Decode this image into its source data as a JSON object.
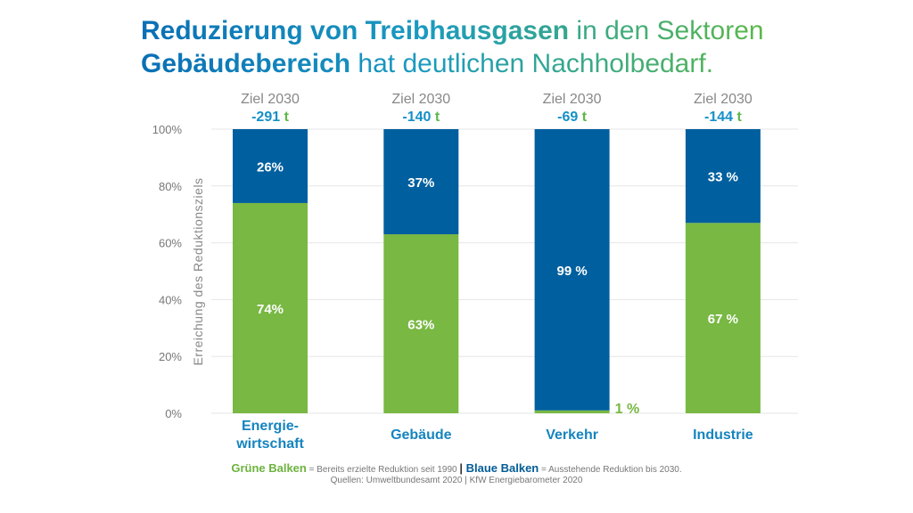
{
  "title": {
    "line1_bold": "Reduzierung von Treibhausgasen",
    "line1_rest": " in den Sektoren",
    "line2_bold": "Gebäudebereich",
    "line2_rest": " hat deutlichen Nachholbedarf."
  },
  "chart_data": {
    "type": "bar",
    "stacked": true,
    "categories": [
      "Energie-\nwirtschaft",
      "Gebäude",
      "Verkehr",
      "Industrie"
    ],
    "ylabel": "Erreichung des Reduktionsziels",
    "ylim": [
      0,
      100
    ],
    "yticks": [
      "0%",
      "20%",
      "40%",
      "60%",
      "80%",
      "100%"
    ],
    "grid": true,
    "targets": {
      "label": "Ziel 2030",
      "values": [
        "-291",
        "-140",
        "-69",
        "-144"
      ],
      "unit": "t"
    },
    "series": [
      {
        "name": "Grüne Balken",
        "color": "#78b843",
        "values": [
          74,
          63,
          1,
          67
        ],
        "labels": [
          "74%",
          "63%",
          "1 %",
          "67 %"
        ]
      },
      {
        "name": "Blaue Balken",
        "color": "#005f9e",
        "values": [
          26,
          37,
          99,
          33
        ],
        "labels": [
          "26%",
          "37%",
          "99 %",
          "33 %"
        ]
      }
    ]
  },
  "legend": {
    "green": "Grüne Balken",
    "green_desc": " = Bereits erzielte Reduktion seit 1990 ",
    "sep": "|",
    "blue": " Blaue Balken",
    "blue_desc": " = Ausstehende Reduktion bis 2030."
  },
  "source": "Quellen: Umweltbundesamt 2020 | KfW Energiebarometer 2020"
}
